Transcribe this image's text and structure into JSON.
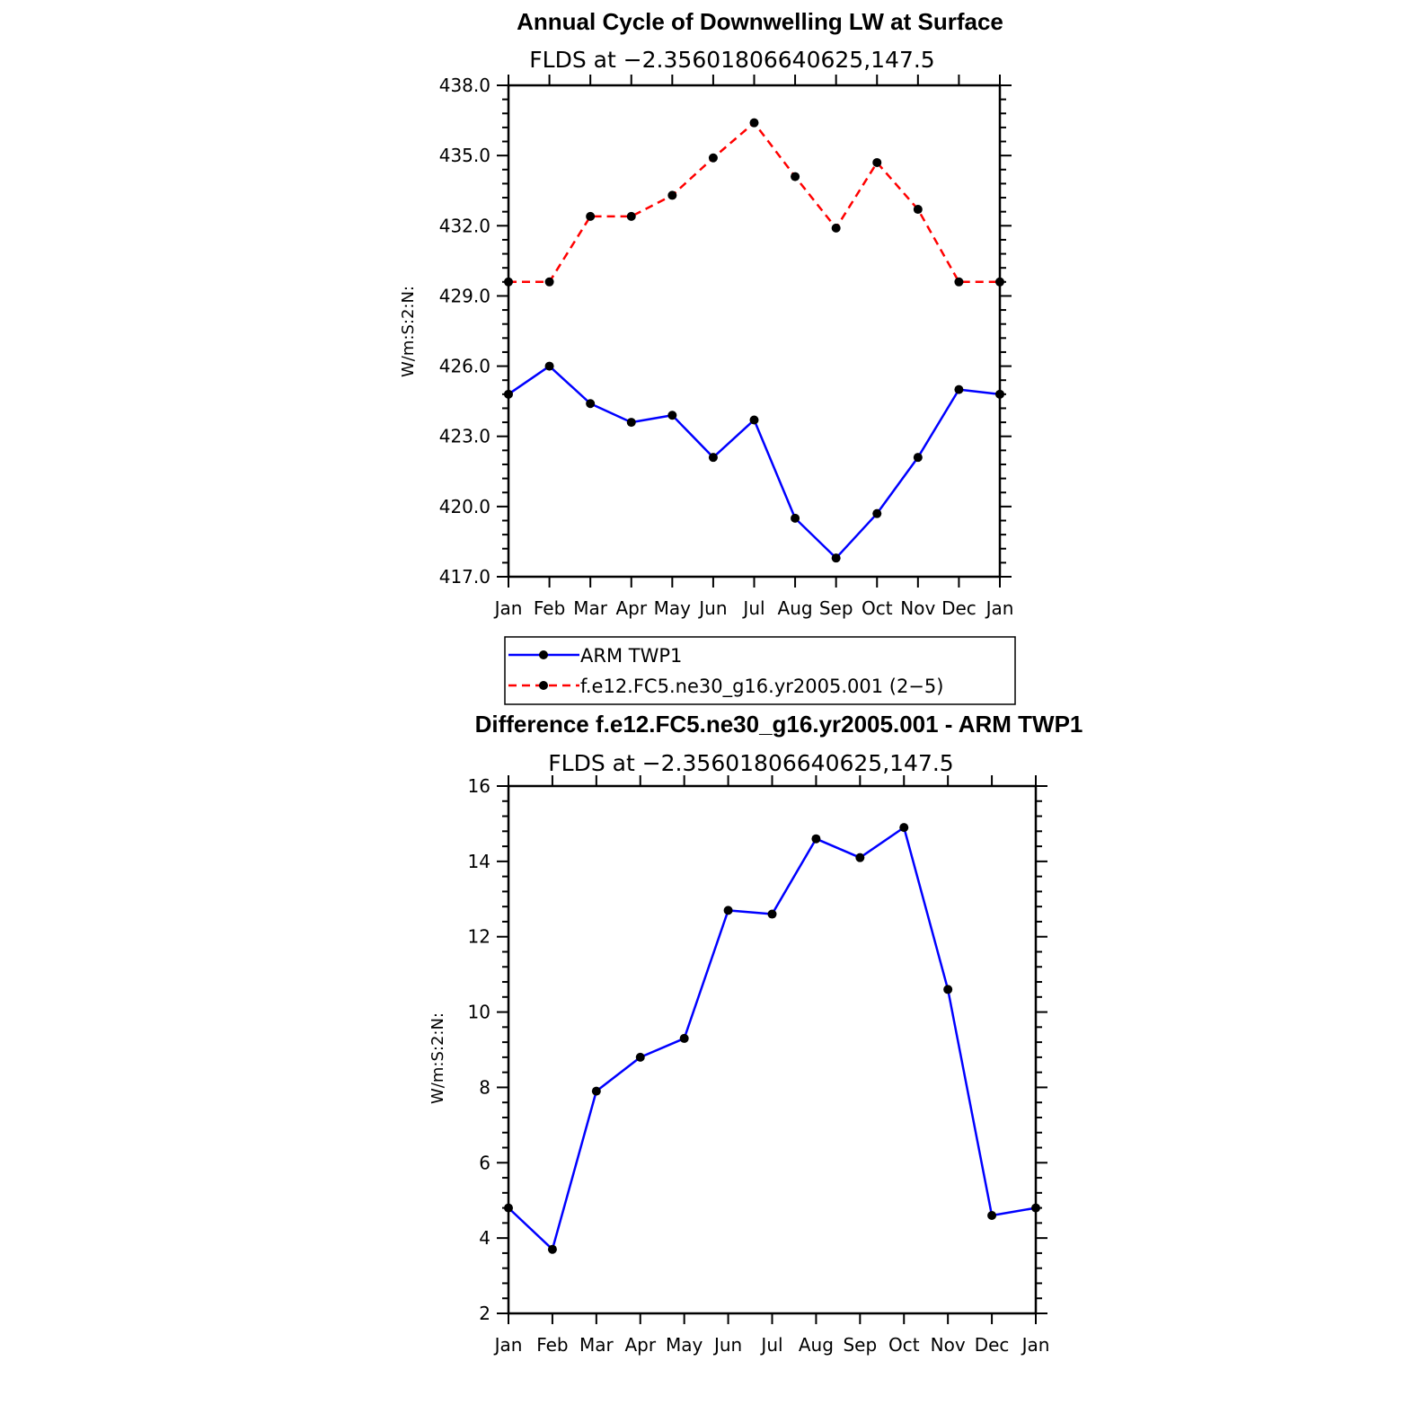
{
  "chart_data": [
    {
      "type": "line",
      "title": "Annual Cycle of Downwelling LW at Surface",
      "subtitle": "FLDS at −2.35601806640625,147.5",
      "ylabel": "W/m:S:2:N:",
      "xlabel": "",
      "ylim": [
        417.0,
        438.0
      ],
      "yticks": [
        "417.0",
        "420.0",
        "423.0",
        "426.0",
        "429.0",
        "432.0",
        "435.0",
        "438.0"
      ],
      "ytick_values": [
        417,
        420,
        423,
        426,
        429,
        432,
        435,
        438
      ],
      "categories": [
        "Jan",
        "Feb",
        "Mar",
        "Apr",
        "May",
        "Jun",
        "Jul",
        "Aug",
        "Sep",
        "Oct",
        "Nov",
        "Dec",
        "Jan"
      ],
      "grid": false,
      "legend_position": "bottom",
      "series": [
        {
          "name": "ARM TWP1",
          "color": "#0000ff",
          "dash": "solid",
          "values": [
            424.8,
            426.0,
            424.4,
            423.6,
            423.9,
            422.1,
            423.7,
            419.5,
            417.8,
            419.7,
            422.1,
            425.0,
            424.8
          ]
        },
        {
          "name": "f.e12.FC5.ne30_g16.yr2005.001 (2−5)",
          "color": "#ff0000",
          "dash": "dashed",
          "values": [
            429.6,
            429.6,
            432.4,
            432.4,
            433.3,
            434.9,
            436.4,
            434.1,
            431.9,
            434.7,
            432.7,
            429.6,
            429.6
          ]
        }
      ]
    },
    {
      "type": "line",
      "title": "Difference f.e12.FC5.ne30_g16.yr2005.001 - ARM TWP1",
      "subtitle": "FLDS at −2.35601806640625,147.5",
      "ylabel": "W/m:S:2:N:",
      "xlabel": "",
      "ylim": [
        2,
        16
      ],
      "yticks": [
        "2",
        "4",
        "6",
        "8",
        "10",
        "12",
        "14",
        "16"
      ],
      "ytick_values": [
        2,
        4,
        6,
        8,
        10,
        12,
        14,
        16
      ],
      "categories": [
        "Jan",
        "Feb",
        "Mar",
        "Apr",
        "May",
        "Jun",
        "Jul",
        "Aug",
        "Sep",
        "Oct",
        "Nov",
        "Dec",
        "Jan"
      ],
      "grid": false,
      "series": [
        {
          "color": "#0000ff",
          "dash": "solid",
          "values": [
            4.8,
            3.7,
            7.9,
            8.8,
            9.3,
            12.7,
            12.6,
            14.6,
            14.1,
            14.9,
            10.6,
            4.6,
            4.8
          ]
        }
      ]
    }
  ]
}
